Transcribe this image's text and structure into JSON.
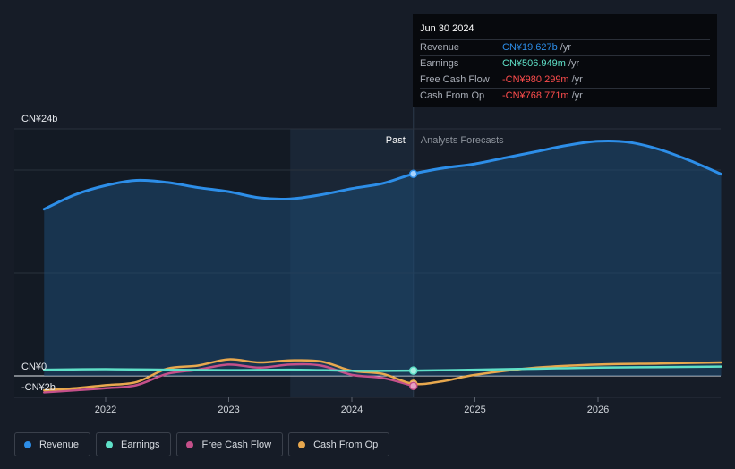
{
  "colors": {
    "revenue": "#2d8ee8",
    "earnings": "#5fe0c8",
    "free_cash_flow": "#c4508a",
    "cash_from_op": "#e8a84e",
    "negative": "#ff4d4d",
    "positive": "#5fe0c8",
    "revenue_value": "#2d8ee8"
  },
  "tooltip": {
    "date": "Jun 30 2024",
    "rows": [
      {
        "label": "Revenue",
        "value": "CN¥19.627b",
        "unit": "/yr"
      },
      {
        "label": "Earnings",
        "value": "CN¥506.949m",
        "unit": "/yr"
      },
      {
        "label": "Free Cash Flow",
        "value": "-CN¥980.299m",
        "unit": "/yr"
      },
      {
        "label": "Cash From Op",
        "value": "-CN¥768.771m",
        "unit": "/yr"
      }
    ]
  },
  "labels": {
    "past": "Past",
    "forecast": "Analysts Forecasts"
  },
  "legend": [
    {
      "label": "Revenue",
      "color": "#2d8ee8"
    },
    {
      "label": "Earnings",
      "color": "#5fe0c8"
    },
    {
      "label": "Free Cash Flow",
      "color": "#c4508a"
    },
    {
      "label": "Cash From Op",
      "color": "#e8a84e"
    }
  ],
  "chart_data": {
    "type": "area",
    "x_ticks": [
      2022,
      2023,
      2024,
      2025,
      2026
    ],
    "tick_labels": [
      "2022",
      "2023",
      "2024",
      "2025",
      "2026"
    ],
    "y_tick_labels": [
      "CN¥24b",
      "CN¥0",
      "-CN¥2b"
    ],
    "y_ticks": [
      24,
      0,
      -2
    ],
    "xlim": [
      2021.3,
      2027.0
    ],
    "ylim": [
      -2,
      24
    ],
    "past_end": 2024.5,
    "shade_start": 2023.5,
    "series": [
      {
        "name": "Revenue",
        "x": [
          2021.5,
          2021.75,
          2022.0,
          2022.25,
          2022.5,
          2022.75,
          2023.0,
          2023.25,
          2023.5,
          2023.75,
          2024.0,
          2024.25,
          2024.5,
          2024.75,
          2025.0,
          2025.25,
          2025.5,
          2025.75,
          2026.0,
          2026.25,
          2026.5,
          2026.75,
          2027.0
        ],
        "values": [
          16.2,
          17.6,
          18.5,
          19.0,
          18.8,
          18.3,
          17.9,
          17.3,
          17.2,
          17.6,
          18.2,
          18.7,
          19.627,
          20.2,
          20.6,
          21.2,
          21.8,
          22.4,
          22.8,
          22.7,
          22.0,
          20.9,
          19.6
        ]
      },
      {
        "name": "Earnings",
        "x": [
          2021.5,
          2022.0,
          2022.5,
          2023.0,
          2023.5,
          2024.0,
          2024.5,
          2025.0,
          2025.5,
          2026.0,
          2026.5,
          2027.0
        ],
        "values": [
          0.6,
          0.65,
          0.6,
          0.55,
          0.6,
          0.5,
          0.507,
          0.6,
          0.7,
          0.8,
          0.85,
          0.9
        ]
      },
      {
        "name": "Free Cash Flow",
        "x": [
          2021.5,
          2021.75,
          2022.0,
          2022.25,
          2022.5,
          2022.75,
          2023.0,
          2023.25,
          2023.5,
          2023.75,
          2024.0,
          2024.25,
          2024.5
        ],
        "values": [
          -1.6,
          -1.4,
          -1.2,
          -0.9,
          0.2,
          0.6,
          1.1,
          0.8,
          1.1,
          1.0,
          0.1,
          -0.2,
          -0.98
        ]
      },
      {
        "name": "Cash From Op",
        "x": [
          2021.5,
          2021.75,
          2022.0,
          2022.25,
          2022.5,
          2022.75,
          2023.0,
          2023.25,
          2023.5,
          2023.75,
          2024.0,
          2024.25,
          2024.5,
          2024.75,
          2025.0,
          2025.5,
          2026.0,
          2026.5,
          2027.0
        ],
        "values": [
          -1.4,
          -1.2,
          -0.9,
          -0.6,
          0.7,
          1.0,
          1.6,
          1.3,
          1.5,
          1.4,
          0.5,
          0.2,
          -0.77,
          -0.5,
          0.1,
          0.8,
          1.1,
          1.2,
          1.3
        ]
      }
    ],
    "highlight": {
      "x": 2024.5,
      "revenue": 19.627,
      "earnings": 0.507,
      "free_cash_flow": -0.98,
      "cash_from_op": -0.77
    }
  }
}
